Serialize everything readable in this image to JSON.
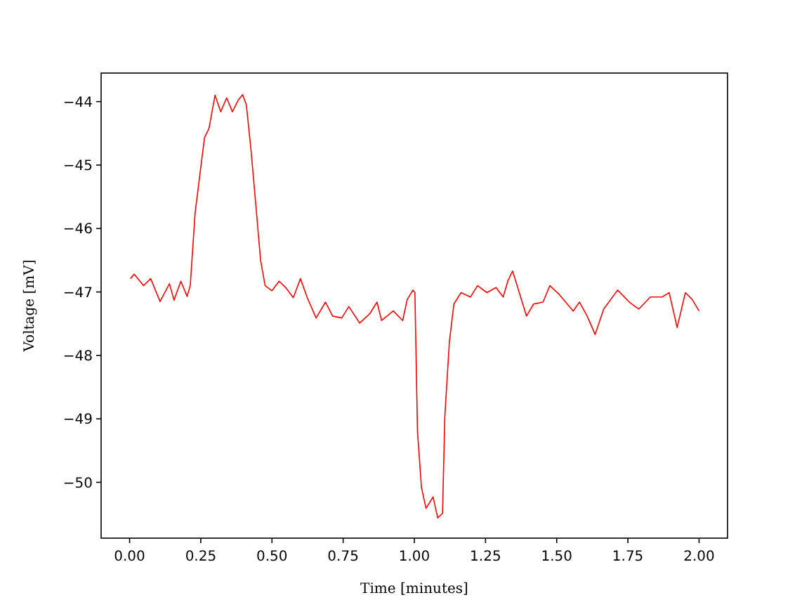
{
  "chart_data": {
    "type": "line",
    "xlabel": "Time [minutes]",
    "ylabel": "Voltage [mV]",
    "xlim": [
      -0.1,
      2.1
    ],
    "ylim": [
      -50.88,
      -43.55
    ],
    "xticks": [
      {
        "value": 0,
        "label": "0.00"
      },
      {
        "value": 0.25,
        "label": "0.25"
      },
      {
        "value": 0.5,
        "label": "0.50"
      },
      {
        "value": 0.75,
        "label": "0.75"
      },
      {
        "value": 1,
        "label": "1.00"
      },
      {
        "value": 1.25,
        "label": "1.25"
      },
      {
        "value": 1.5,
        "label": "1.50"
      },
      {
        "value": 1.75,
        "label": "1.75"
      },
      {
        "value": 2,
        "label": "2.00"
      }
    ],
    "yticks": [
      {
        "value": -50,
        "label": "−50"
      },
      {
        "value": -49,
        "label": "−49"
      },
      {
        "value": -48,
        "label": "−48"
      },
      {
        "value": -47,
        "label": "−47"
      },
      {
        "value": -46,
        "label": "−46"
      },
      {
        "value": -45,
        "label": "−45"
      },
      {
        "value": -44,
        "label": "−44"
      }
    ],
    "grid": false,
    "marker": "none",
    "line_style": "solid",
    "series": [
      {
        "color": "#ff0000",
        "x": [
          0.003,
          0.016,
          0.049,
          0.074,
          0.107,
          0.14,
          0.156,
          0.18,
          0.202,
          0.213,
          0.23,
          0.246,
          0.263,
          0.279,
          0.3,
          0.32,
          0.341,
          0.361,
          0.381,
          0.397,
          0.41,
          0.427,
          0.443,
          0.46,
          0.476,
          0.5,
          0.525,
          0.55,
          0.575,
          0.6,
          0.624,
          0.655,
          0.688,
          0.713,
          0.745,
          0.77,
          0.808,
          0.844,
          0.869,
          0.885,
          0.926,
          0.959,
          0.975,
          0.995,
          1.002,
          1.011,
          1.025,
          1.041,
          1.066,
          1.082,
          1.099,
          1.107,
          1.123,
          1.139,
          1.164,
          1.197,
          1.222,
          1.255,
          1.287,
          1.312,
          1.329,
          1.345,
          1.361,
          1.394,
          1.419,
          1.452,
          1.476,
          1.509,
          1.558,
          1.58,
          1.607,
          1.635,
          1.665,
          1.714,
          1.755,
          1.788,
          1.829,
          1.87,
          1.895,
          1.923,
          1.952,
          1.976,
          2.0
        ],
        "values": [
          -46.79,
          -46.72,
          -46.9,
          -46.79,
          -47.15,
          -46.87,
          -47.13,
          -46.83,
          -47.07,
          -46.9,
          -45.76,
          -45.18,
          -44.57,
          -44.42,
          -43.9,
          -44.16,
          -43.94,
          -44.16,
          -43.98,
          -43.89,
          -44.05,
          -44.79,
          -45.61,
          -46.5,
          -46.9,
          -46.98,
          -46.83,
          -46.94,
          -47.09,
          -46.79,
          -47.09,
          -47.41,
          -47.16,
          -47.38,
          -47.41,
          -47.23,
          -47.49,
          -47.34,
          -47.16,
          -47.45,
          -47.3,
          -47.45,
          -47.12,
          -46.97,
          -47.01,
          -49.19,
          -50.08,
          -50.41,
          -50.23,
          -50.56,
          -50.49,
          -48.97,
          -47.79,
          -47.19,
          -47.01,
          -47.08,
          -46.9,
          -47.01,
          -46.93,
          -47.08,
          -46.82,
          -46.67,
          -46.9,
          -47.38,
          -47.19,
          -47.16,
          -46.9,
          -47.04,
          -47.3,
          -47.16,
          -47.38,
          -47.67,
          -47.27,
          -46.97,
          -47.16,
          -47.27,
          -47.08,
          -47.08,
          -47.01,
          -47.56,
          -47.01,
          -47.12,
          -47.3
        ]
      }
    ]
  }
}
